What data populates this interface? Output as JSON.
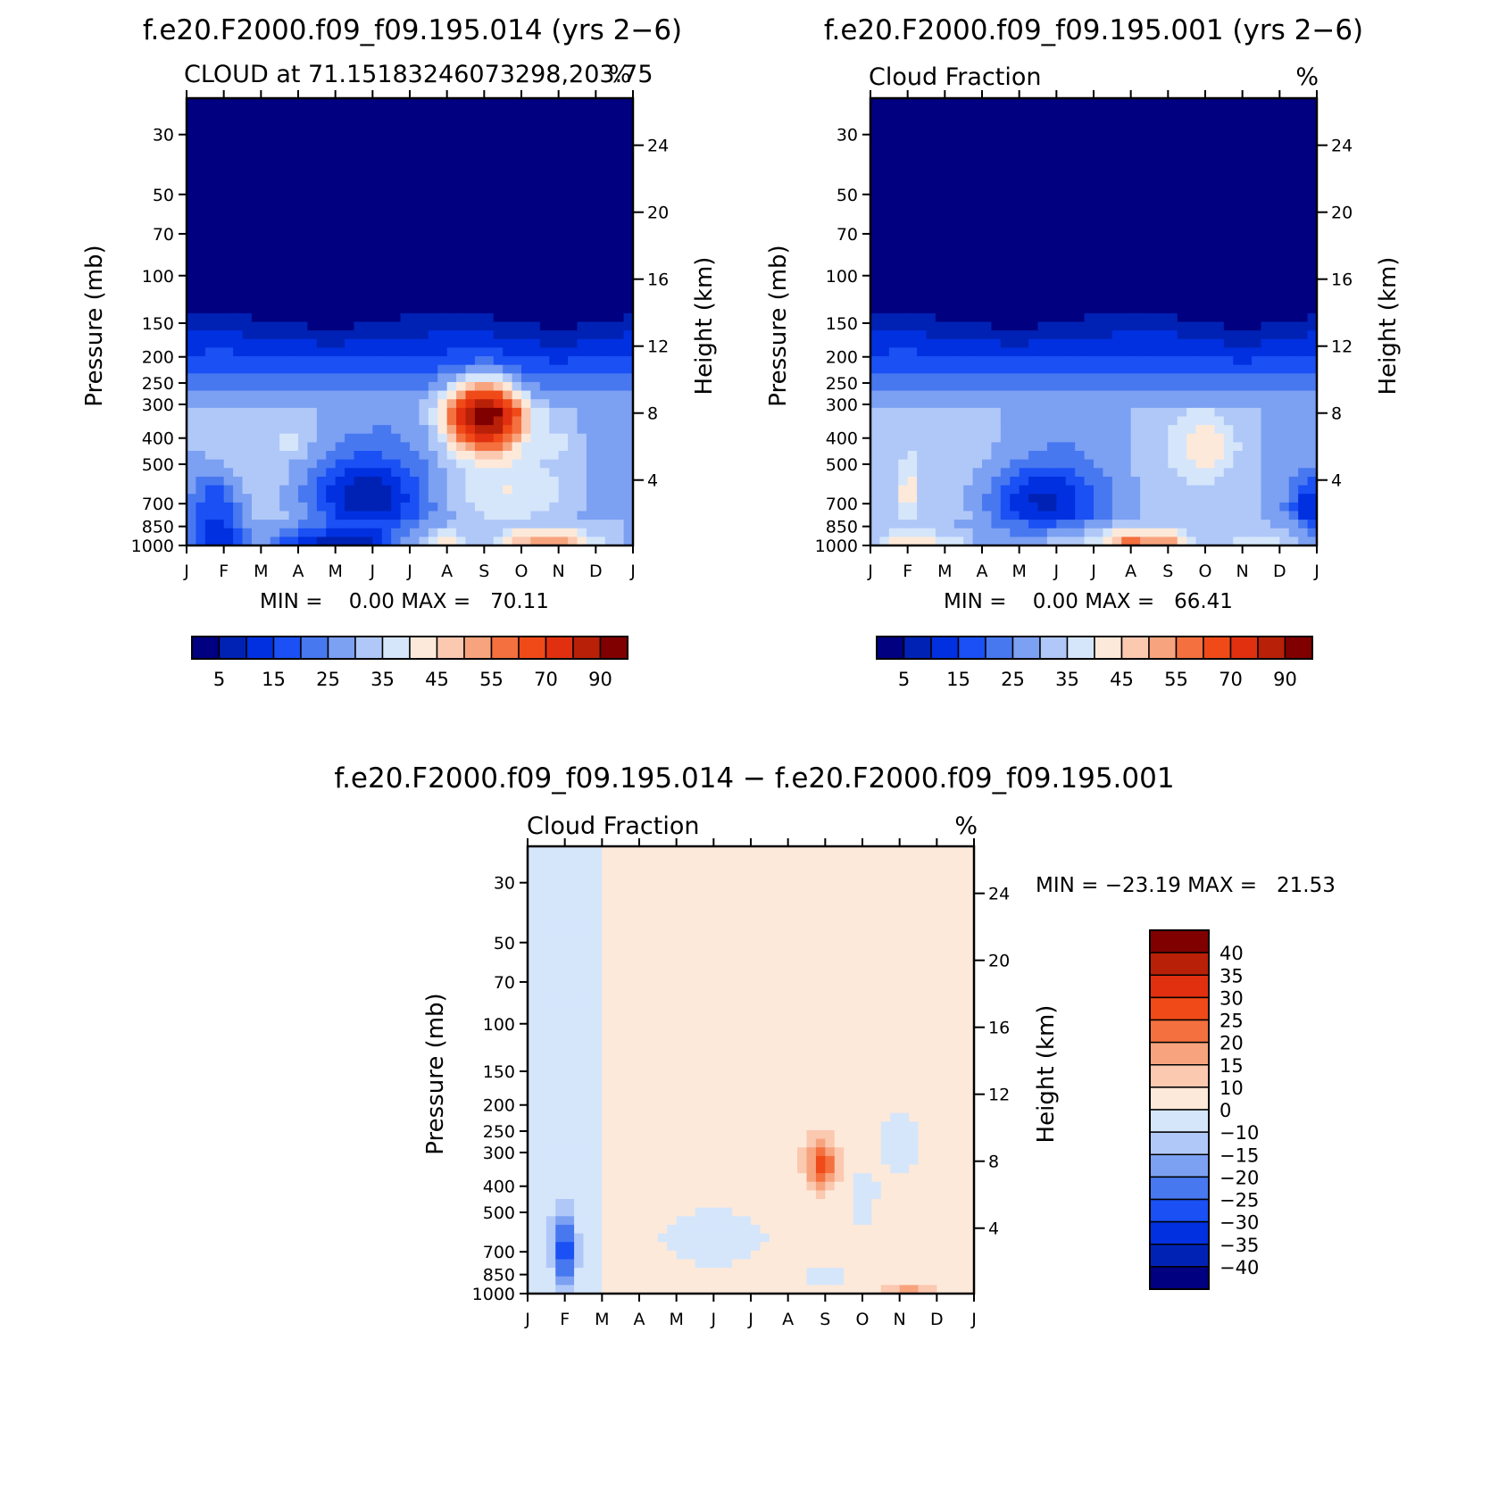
{
  "palettes": {
    "sequential": [
      "#000080",
      "#0022b4",
      "#0030e0",
      "#1a50f4",
      "#4878f0",
      "#7ca0f2",
      "#b0c8f8",
      "#d5e6fb",
      "#fde9d9",
      "#fbc8b0",
      "#f7a47e",
      "#f4703f",
      "#f04a18",
      "#e03010",
      "#b82008",
      "#800000"
    ],
    "difference": [
      "#000080",
      "#0022b4",
      "#0030e0",
      "#1a50f4",
      "#4878f0",
      "#7ca0f2",
      "#b0c8f8",
      "#d5e6fb",
      "#fde9d9",
      "#fbc8b0",
      "#f7a47e",
      "#f4703f",
      "#f04a18",
      "#e03010",
      "#b82008",
      "#800000"
    ]
  },
  "chart_data": [
    {
      "id": "panel-a",
      "type": "heatmap",
      "main_title": "f.e20.F2000.f09_f09.195.014 (yrs 2−6)",
      "left_subtitle": "CLOUD at 71.15183246073298,203.75",
      "right_subtitle": "%",
      "ylabel": "Pressure (mb)",
      "y2label": "Height (km)",
      "x_ticks": [
        "J",
        "F",
        "M",
        "A",
        "M",
        "J",
        "J",
        "A",
        "S",
        "O",
        "N",
        "D",
        "J"
      ],
      "pressure_ticks": [
        30,
        50,
        70,
        100,
        150,
        200,
        250,
        300,
        400,
        500,
        700,
        850,
        1000
      ],
      "height_ticks": [
        24,
        20,
        16,
        12,
        8,
        4
      ],
      "ylim_mb": [
        1000,
        22
      ],
      "min_text": "MIN =    0.00 MAX =   70.11",
      "min": 0.0,
      "max": 70.11,
      "colorbar_labels": [
        "5",
        "15",
        "25",
        "35",
        "45",
        "55",
        "70",
        "90"
      ],
      "levels": [
        5,
        10,
        15,
        20,
        25,
        30,
        35,
        40,
        45,
        50,
        55,
        60,
        70,
        80,
        90
      ],
      "boundary_layer": [
        [
          0,
          28
        ],
        [
          1,
          18
        ],
        [
          2,
          30
        ],
        [
          3,
          14
        ],
        [
          4,
          10
        ],
        [
          5,
          14
        ],
        [
          6,
          30
        ],
        [
          7,
          46
        ],
        [
          8,
          30
        ],
        [
          9,
          52
        ],
        [
          10,
          56
        ],
        [
          11,
          38
        ],
        [
          12,
          28
        ]
      ],
      "features": [
        {
          "month": 8.0,
          "p": 330,
          "dm": 0.9,
          "dz": 1.9,
          "peak": 68
        },
        {
          "month": 4.8,
          "p": 660,
          "dm": 1.6,
          "dz": 2.4,
          "peak": -20
        },
        {
          "month": 0.8,
          "p": 740,
          "dm": 0.7,
          "dz": 2.2,
          "peak": -18
        },
        {
          "month": 2.9,
          "p": 420,
          "dm": 0.4,
          "dz": 0.6,
          "peak": 6
        },
        {
          "month": 10.0,
          "p": 420,
          "dm": 0.5,
          "dz": 0.8,
          "peak": 5
        },
        {
          "month": 8.5,
          "p": 620,
          "dm": 1.8,
          "dz": 1.5,
          "peak": 6
        }
      ]
    },
    {
      "id": "panel-b",
      "type": "heatmap",
      "main_title": "f.e20.F2000.f09_f09.195.001 (yrs 2−6)",
      "left_subtitle": "Cloud Fraction",
      "right_subtitle": "%",
      "ylabel": "Pressure (mb)",
      "y2label": "Height (km)",
      "x_ticks": [
        "J",
        "F",
        "M",
        "A",
        "M",
        "J",
        "J",
        "A",
        "S",
        "O",
        "N",
        "D",
        "J"
      ],
      "pressure_ticks": [
        30,
        50,
        70,
        100,
        150,
        200,
        250,
        300,
        400,
        500,
        700,
        850,
        1000
      ],
      "height_ticks": [
        24,
        20,
        16,
        12,
        8,
        4
      ],
      "ylim_mb": [
        1000,
        22
      ],
      "min_text": "MIN =    0.00 MAX =   66.41",
      "min": 0.0,
      "max": 66.41,
      "colorbar_labels": [
        "5",
        "15",
        "25",
        "35",
        "45",
        "55",
        "70",
        "90"
      ],
      "levels": [
        5,
        10,
        15,
        20,
        25,
        30,
        35,
        40,
        45,
        50,
        55,
        60,
        70,
        80,
        90
      ],
      "boundary_layer": [
        [
          0,
          34
        ],
        [
          1,
          46
        ],
        [
          2,
          40
        ],
        [
          3,
          30
        ],
        [
          4,
          30
        ],
        [
          5,
          36
        ],
        [
          6,
          38
        ],
        [
          7,
          60
        ],
        [
          8,
          54
        ],
        [
          9,
          30
        ],
        [
          10,
          36
        ],
        [
          11,
          36
        ],
        [
          12,
          30
        ]
      ],
      "features": [
        {
          "month": 9.0,
          "p": 430,
          "dm": 0.8,
          "dz": 1.6,
          "peak": 10
        },
        {
          "month": 4.6,
          "p": 680,
          "dm": 1.5,
          "dz": 2.0,
          "peak": -18
        },
        {
          "month": 1.0,
          "p": 640,
          "dm": 0.25,
          "dz": 2.0,
          "peak": 10
        },
        {
          "month": 11.9,
          "p": 720,
          "dm": 0.6,
          "dz": 1.6,
          "peak": -16
        }
      ]
    },
    {
      "id": "panel-diff",
      "type": "heatmap",
      "main_title": "f.e20.F2000.f09_f09.195.014 − f.e20.F2000.f09_f09.195.001",
      "left_subtitle": "Cloud Fraction",
      "right_subtitle": "%",
      "ylabel": "Pressure (mb)",
      "y2label": "Height (km)",
      "x_ticks": [
        "J",
        "F",
        "M",
        "A",
        "M",
        "J",
        "J",
        "A",
        "S",
        "O",
        "N",
        "D",
        "J"
      ],
      "pressure_ticks": [
        30,
        50,
        70,
        100,
        150,
        200,
        250,
        300,
        400,
        500,
        700,
        850,
        1000
      ],
      "height_ticks": [
        24,
        20,
        16,
        12,
        8,
        4
      ],
      "ylim_mb": [
        1000,
        22
      ],
      "min_text": "MIN = −23.19 MAX =   21.53",
      "min": -23.19,
      "max": 21.53,
      "colorbar_labels": [
        "40",
        "35",
        "30",
        "25",
        "20",
        "15",
        "10",
        "0",
        "−10",
        "−15",
        "−20",
        "−25",
        "−30",
        "−35",
        "−40"
      ],
      "levels": [
        -40,
        -35,
        -30,
        -25,
        -20,
        -15,
        -10,
        0,
        10,
        15,
        20,
        25,
        30,
        35,
        40
      ]
    }
  ]
}
